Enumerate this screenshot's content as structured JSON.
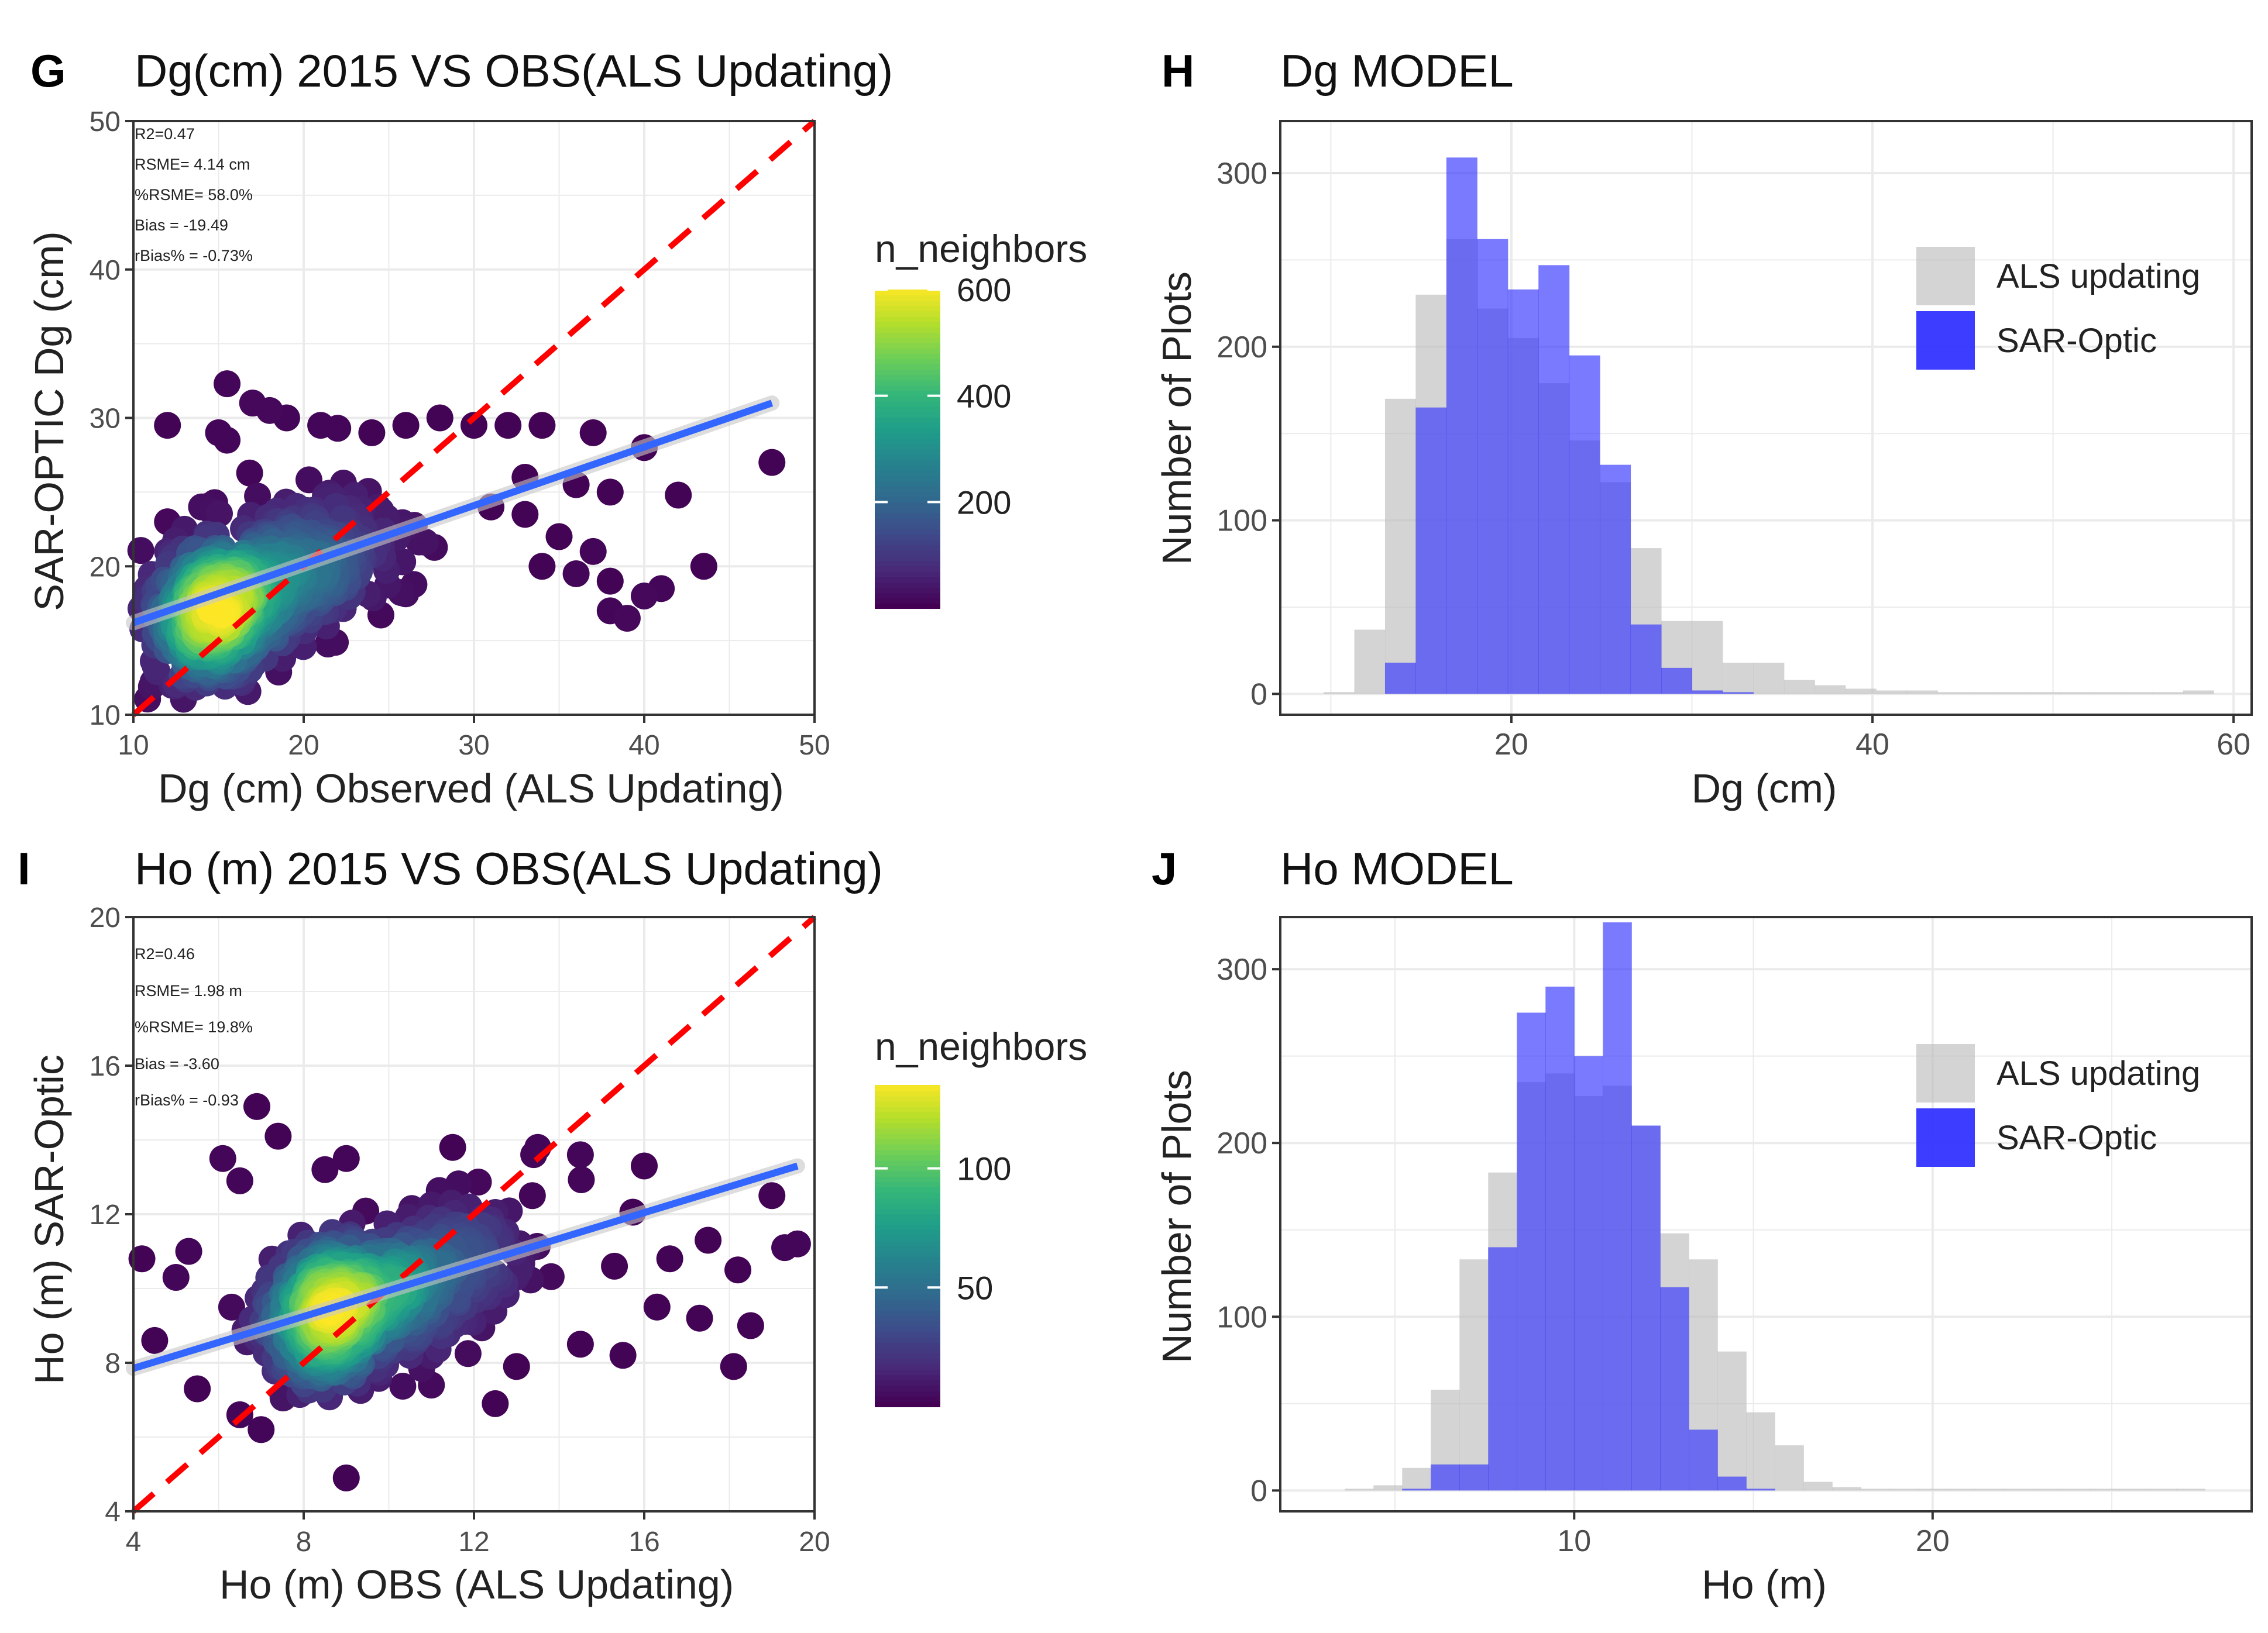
{
  "colors": {
    "viridis": [
      "#440154",
      "#482878",
      "#3e4989",
      "#31688e",
      "#26828e",
      "#1f9e89",
      "#35b779",
      "#6ece58",
      "#b5de2b",
      "#fde725"
    ],
    "identity_line": "#ff0000",
    "fit_line": "#3366ff",
    "als_fill": "#bdbdbd",
    "sar_fill": "#3333ff",
    "grid": "#ebebeb",
    "panel_border": "#333333"
  },
  "chart_data": [
    {
      "id": "G",
      "type": "scatter",
      "panel_label": "G",
      "title": "Dg(cm) 2015 VS OBS(ALS Updating)",
      "xlabel": "Dg (cm) Observed  (ALS Updating)",
      "ylabel": "SAR-OPTIC Dg (cm)",
      "xlim": [
        10,
        50
      ],
      "ylim": [
        10,
        50
      ],
      "xticks": [
        10,
        20,
        30,
        40,
        50
      ],
      "yticks": [
        10,
        20,
        30,
        40,
        50
      ],
      "stats": [
        "R2=0.47",
        "RSME= 4.14 cm",
        "%RSME= 58.0%",
        "Bias = -19.49",
        "rBias% =  -0.73%"
      ],
      "fit_line": {
        "x": [
          10,
          47.5
        ],
        "y": [
          16.2,
          31.0
        ]
      },
      "identity_line": {
        "x": [
          10,
          50
        ],
        "y": [
          10,
          50
        ]
      },
      "density_center": [
        15.5,
        17.0
      ],
      "outliers": [
        [
          15.5,
          32.3
        ],
        [
          17,
          31
        ],
        [
          18,
          30.5
        ],
        [
          19,
          30
        ],
        [
          21,
          29.5
        ],
        [
          22,
          29.3
        ],
        [
          24,
          29
        ],
        [
          26,
          29.5
        ],
        [
          28,
          30
        ],
        [
          30,
          29.5
        ],
        [
          32,
          29.5
        ],
        [
          34,
          29.5
        ],
        [
          37,
          29
        ],
        [
          40,
          28
        ],
        [
          47.5,
          27
        ],
        [
          12,
          29.5
        ],
        [
          15,
          29
        ],
        [
          15.5,
          28.5
        ],
        [
          33,
          26
        ],
        [
          36,
          25.5
        ],
        [
          38,
          25
        ],
        [
          42,
          24.8
        ],
        [
          31,
          24
        ],
        [
          33,
          23.5
        ],
        [
          35,
          22
        ],
        [
          37,
          21
        ],
        [
          34,
          20
        ],
        [
          36,
          19.5
        ],
        [
          38,
          19
        ],
        [
          40,
          18
        ],
        [
          41,
          18.5
        ],
        [
          43.5,
          20
        ],
        [
          38,
          17
        ],
        [
          39,
          16.5
        ],
        [
          16.5,
          12.5
        ],
        [
          12,
          23
        ],
        [
          13,
          22.5
        ],
        [
          14,
          24
        ],
        [
          12,
          21
        ]
      ],
      "colorbar": {
        "label": "n_neighbors",
        "ticks": [
          200,
          400,
          600
        ],
        "range": [
          0,
          600
        ]
      }
    },
    {
      "id": "H",
      "type": "bar",
      "panel_label": "H",
      "title": "Dg MODEL",
      "xlabel": "Dg (cm)",
      "ylabel": "Number of Plots",
      "xlim": [
        7.2,
        61
      ],
      "ylim": [
        -12,
        330
      ],
      "xticks": [
        20,
        40,
        60
      ],
      "yticks": [
        0,
        100,
        200,
        300
      ],
      "bin_width": 1.7,
      "series": [
        {
          "name": "ALS updating",
          "bins": [
            [
              9.6,
              1
            ],
            [
              11.3,
              37
            ],
            [
              13.0,
              170
            ],
            [
              14.7,
              230
            ],
            [
              16.4,
              262
            ],
            [
              18.1,
              222
            ],
            [
              19.8,
              205
            ],
            [
              21.5,
              179
            ],
            [
              23.2,
              146
            ],
            [
              24.9,
              122
            ],
            [
              26.6,
              84
            ],
            [
              28.3,
              42
            ],
            [
              30.0,
              42
            ],
            [
              31.7,
              18
            ],
            [
              33.4,
              18
            ],
            [
              35.1,
              8
            ],
            [
              36.8,
              5
            ],
            [
              38.5,
              3
            ],
            [
              40.2,
              2
            ],
            [
              41.9,
              2
            ],
            [
              43.6,
              1
            ],
            [
              45.3,
              1
            ],
            [
              47.0,
              1
            ],
            [
              48.7,
              1
            ],
            [
              50.4,
              1
            ],
            [
              52.1,
              1
            ],
            [
              53.8,
              1
            ],
            [
              55.5,
              1
            ],
            [
              57.2,
              2
            ]
          ]
        },
        {
          "name": "SAR-Optic",
          "bins": [
            [
              13.0,
              18
            ],
            [
              14.7,
              165
            ],
            [
              16.4,
              309
            ],
            [
              18.1,
              262
            ],
            [
              19.8,
              233
            ],
            [
              21.5,
              247
            ],
            [
              23.2,
              195
            ],
            [
              24.9,
              132
            ],
            [
              26.6,
              40
            ],
            [
              28.3,
              15
            ],
            [
              30.0,
              2
            ],
            [
              31.7,
              1
            ]
          ]
        }
      ]
    },
    {
      "id": "I",
      "type": "scatter",
      "panel_label": "I",
      "title": "Ho (m) 2015 VS OBS(ALS Updating)",
      "xlabel": "Ho (m) OBS (ALS Updating)",
      "ylabel": "Ho (m) SAR-Optic",
      "xlim": [
        4,
        20
      ],
      "ylim": [
        4,
        20
      ],
      "xticks": [
        4,
        8,
        12,
        16,
        20
      ],
      "yticks": [
        4,
        8,
        12,
        16,
        20
      ],
      "stats": [
        "R2=0.46",
        "RSME= 1.98 m",
        "%RSME= 19.8%",
        "Bias = -3.60",
        "rBias% =  -0.93"
      ],
      "fit_line": {
        "x": [
          4,
          19.6
        ],
        "y": [
          7.85,
          13.3
        ]
      },
      "identity_line": {
        "x": [
          4,
          20
        ],
        "y": [
          4,
          20
        ]
      },
      "density_center": [
        9.0,
        9.5
      ],
      "outliers": [
        [
          6.9,
          14.9
        ],
        [
          6.1,
          13.5
        ],
        [
          7.4,
          14.1
        ],
        [
          4.2,
          10.8
        ],
        [
          4.5,
          8.6
        ],
        [
          5.3,
          11.0
        ],
        [
          5.0,
          10.3
        ],
        [
          6.5,
          12.9
        ],
        [
          8.5,
          13.2
        ],
        [
          9.0,
          13.5
        ],
        [
          11.5,
          13.8
        ],
        [
          13.5,
          13.8
        ],
        [
          14.5,
          13.6
        ],
        [
          16.0,
          13.3
        ],
        [
          19.0,
          12.5
        ],
        [
          19.6,
          11.2
        ],
        [
          19.3,
          11.1
        ],
        [
          17.5,
          11.3
        ],
        [
          16.6,
          10.8
        ],
        [
          18.2,
          10.5
        ],
        [
          15.3,
          10.6
        ],
        [
          16.3,
          9.5
        ],
        [
          17.3,
          9.2
        ],
        [
          18.5,
          9.0
        ],
        [
          18.1,
          7.9
        ],
        [
          15.5,
          8.2
        ],
        [
          14.5,
          8.5
        ],
        [
          12.5,
          6.9
        ],
        [
          11.0,
          7.4
        ],
        [
          9.0,
          4.9
        ],
        [
          7.0,
          6.2
        ],
        [
          6.5,
          6.6
        ],
        [
          5.5,
          7.3
        ],
        [
          10.5,
          8.2
        ],
        [
          13.0,
          7.9
        ]
      ],
      "colorbar": {
        "label": "n_neighbors",
        "ticks": [
          50,
          100
        ],
        "range": [
          0,
          135
        ]
      }
    },
    {
      "id": "J",
      "type": "bar",
      "panel_label": "J",
      "title": "Ho MODEL",
      "xlabel": "Ho (m)",
      "ylabel": "Number of Plots",
      "xlim": [
        1.8,
        28.9
      ],
      "ylim": [
        -12,
        330
      ],
      "xticks": [
        10,
        20
      ],
      "yticks": [
        0,
        100,
        200,
        300
      ],
      "bin_width": 0.8,
      "series": [
        {
          "name": "ALS updating",
          "bins": [
            [
              3.6,
              1
            ],
            [
              4.4,
              3
            ],
            [
              5.2,
              13
            ],
            [
              6.0,
              58
            ],
            [
              6.8,
              133
            ],
            [
              7.6,
              183
            ],
            [
              8.4,
              235
            ],
            [
              9.2,
              240
            ],
            [
              10.0,
              227
            ],
            [
              10.8,
              233
            ],
            [
              11.6,
              210
            ],
            [
              12.4,
              148
            ],
            [
              13.2,
              133
            ],
            [
              14.0,
              80
            ],
            [
              14.8,
              45
            ],
            [
              15.6,
              26
            ],
            [
              16.4,
              5
            ],
            [
              17.2,
              2
            ],
            [
              18.0,
              1
            ],
            [
              18.8,
              1
            ],
            [
              19.6,
              1
            ],
            [
              20.4,
              1
            ],
            [
              21.2,
              1
            ],
            [
              22.0,
              1
            ],
            [
              22.8,
              1
            ],
            [
              23.6,
              1
            ],
            [
              24.4,
              1
            ],
            [
              25.2,
              1
            ],
            [
              26.0,
              1
            ],
            [
              26.8,
              1
            ]
          ]
        },
        {
          "name": "SAR-Optic",
          "bins": [
            [
              5.2,
              1
            ],
            [
              6.0,
              15
            ],
            [
              6.8,
              15
            ],
            [
              7.6,
              140
            ],
            [
              8.4,
              275
            ],
            [
              9.2,
              290
            ],
            [
              10.0,
              250
            ],
            [
              10.8,
              327
            ],
            [
              11.6,
              210
            ],
            [
              12.4,
              117
            ],
            [
              13.2,
              35
            ],
            [
              14.0,
              8
            ],
            [
              14.8,
              1
            ]
          ]
        }
      ]
    }
  ]
}
